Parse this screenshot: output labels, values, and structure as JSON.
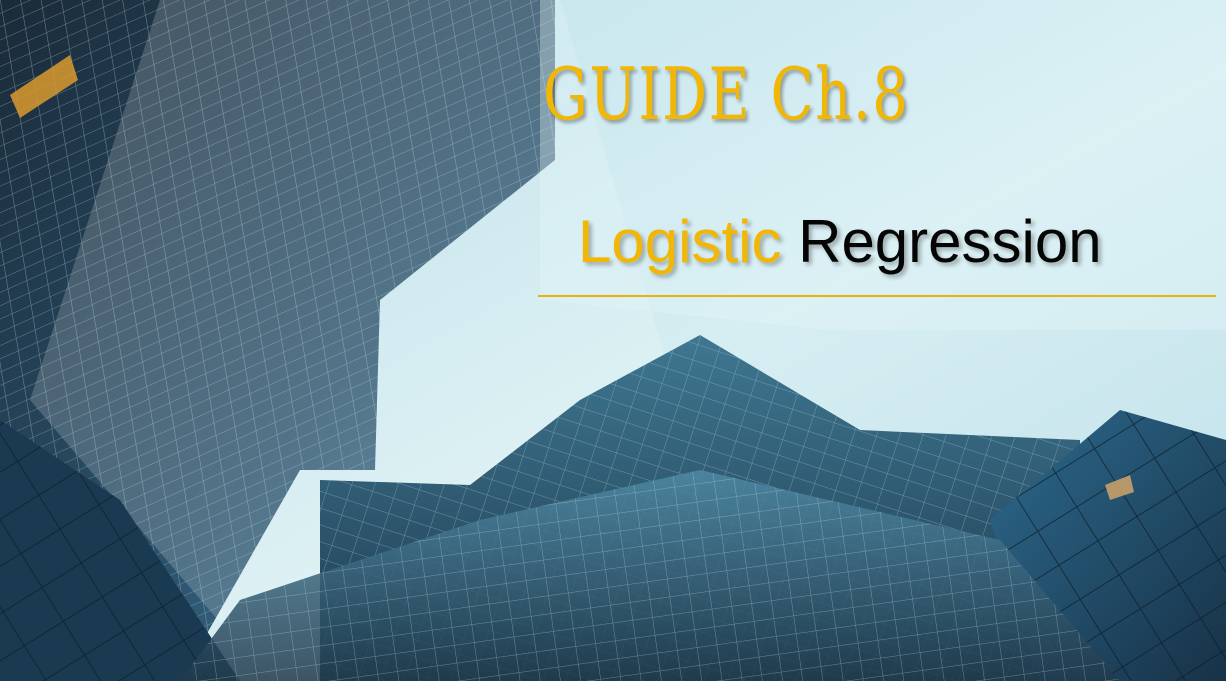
{
  "slide": {
    "title": "GUIDE Ch.8",
    "subtitle_accent": "Logistic",
    "subtitle_rest": "Regression",
    "colors": {
      "accent": "#f2b705",
      "text_dark": "#050505",
      "rule": "#e6b30e",
      "sky": "#cfe7ef"
    }
  },
  "background": {
    "image": "low-angle-glass-skyscrapers-photo"
  }
}
